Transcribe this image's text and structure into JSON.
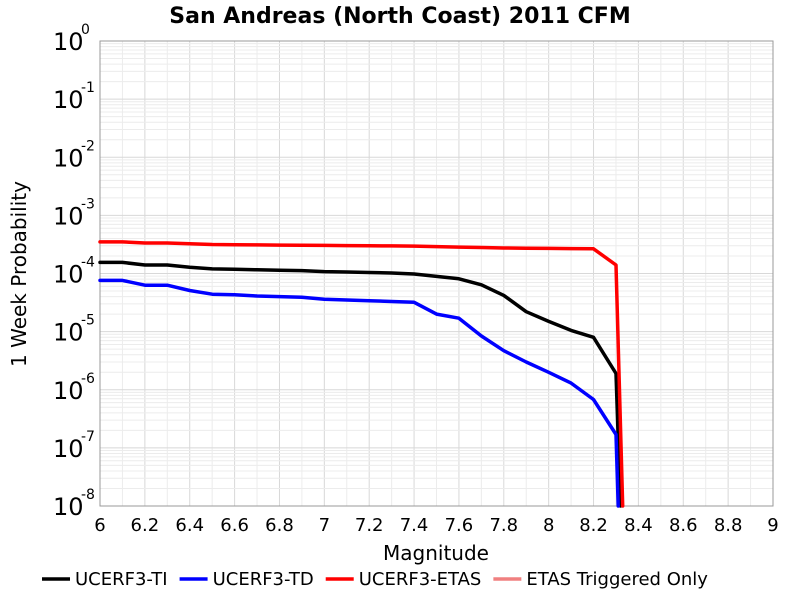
{
  "chart_data": {
    "type": "line",
    "title": "San Andreas (North Coast) 2011 CFM",
    "xlabel": "Magnitude",
    "ylabel": "1 Week Probability",
    "xlim": [
      6,
      9
    ],
    "ylim": [
      1e-08,
      1
    ],
    "yscale": "log",
    "grid": true,
    "legend_position": "bottom",
    "x_ticks": [
      "6",
      "6.2",
      "6.4",
      "6.6",
      "6.8",
      "7",
      "7.2",
      "7.4",
      "7.6",
      "7.8",
      "8",
      "8.2",
      "8.4",
      "8.6",
      "8.8",
      "9"
    ],
    "y_ticks": [
      {
        "base": "10",
        "exp": "0"
      },
      {
        "base": "10",
        "exp": "-1"
      },
      {
        "base": "10",
        "exp": "-2"
      },
      {
        "base": "10",
        "exp": "-3"
      },
      {
        "base": "10",
        "exp": "-4"
      },
      {
        "base": "10",
        "exp": "-5"
      },
      {
        "base": "10",
        "exp": "-6"
      },
      {
        "base": "10",
        "exp": "-7"
      },
      {
        "base": "10",
        "exp": "-8"
      }
    ],
    "series": [
      {
        "name": "UCERF3-TI",
        "color": "#000000",
        "x": [
          6.0,
          6.1,
          6.2,
          6.3,
          6.4,
          6.5,
          6.6,
          6.7,
          6.8,
          6.9,
          7.0,
          7.1,
          7.2,
          7.3,
          7.4,
          7.5,
          7.6,
          7.7,
          7.8,
          7.9,
          8.0,
          8.1,
          8.2,
          8.3,
          8.32
        ],
        "y": [
          0.000155,
          0.000155,
          0.00014,
          0.00014,
          0.000128,
          0.00012,
          0.000118,
          0.000116,
          0.000114,
          0.000112,
          0.000108,
          0.000106,
          0.000104,
          0.000102,
          9.8e-05,
          8.9e-05,
          8.1e-05,
          6.4e-05,
          4.2e-05,
          2.2e-05,
          1.5e-05,
          1.05e-05,
          8e-06,
          1.9e-06,
          1e-08
        ]
      },
      {
        "name": "UCERF3-TD",
        "color": "#0000ff",
        "x": [
          6.0,
          6.1,
          6.2,
          6.3,
          6.4,
          6.5,
          6.6,
          6.7,
          6.8,
          6.9,
          7.0,
          7.1,
          7.2,
          7.3,
          7.4,
          7.5,
          7.6,
          7.7,
          7.8,
          7.9,
          8.0,
          8.1,
          8.2,
          8.3,
          8.31
        ],
        "y": [
          7.6e-05,
          7.6e-05,
          6.3e-05,
          6.3e-05,
          5.1e-05,
          4.4e-05,
          4.3e-05,
          4.1e-05,
          4e-05,
          3.9e-05,
          3.6e-05,
          3.5e-05,
          3.4e-05,
          3.3e-05,
          3.2e-05,
          2e-05,
          1.7e-05,
          8.4e-06,
          4.7e-06,
          3e-06,
          2e-06,
          1.3e-06,
          6.8e-07,
          1.7e-07,
          1e-08
        ]
      },
      {
        "name": "UCERF3-ETAS",
        "color": "#ff0000",
        "x": [
          6.0,
          6.1,
          6.2,
          6.3,
          6.4,
          6.5,
          6.6,
          6.7,
          6.8,
          6.9,
          7.0,
          7.1,
          7.2,
          7.3,
          7.4,
          7.5,
          7.6,
          7.7,
          7.8,
          7.9,
          8.0,
          8.1,
          8.2,
          8.3,
          8.33
        ],
        "y": [
          0.00035,
          0.00035,
          0.000335,
          0.000335,
          0.000325,
          0.000315,
          0.000312,
          0.00031,
          0.000308,
          0.000306,
          0.000304,
          0.000302,
          0.0003,
          0.000298,
          0.000296,
          0.00029,
          0.000285,
          0.00028,
          0.000275,
          0.000272,
          0.00027,
          0.000268,
          0.000266,
          0.00014,
          1e-08
        ]
      },
      {
        "name": "ETAS Triggered Only",
        "color": "#f08080",
        "x": [],
        "y": []
      }
    ]
  }
}
